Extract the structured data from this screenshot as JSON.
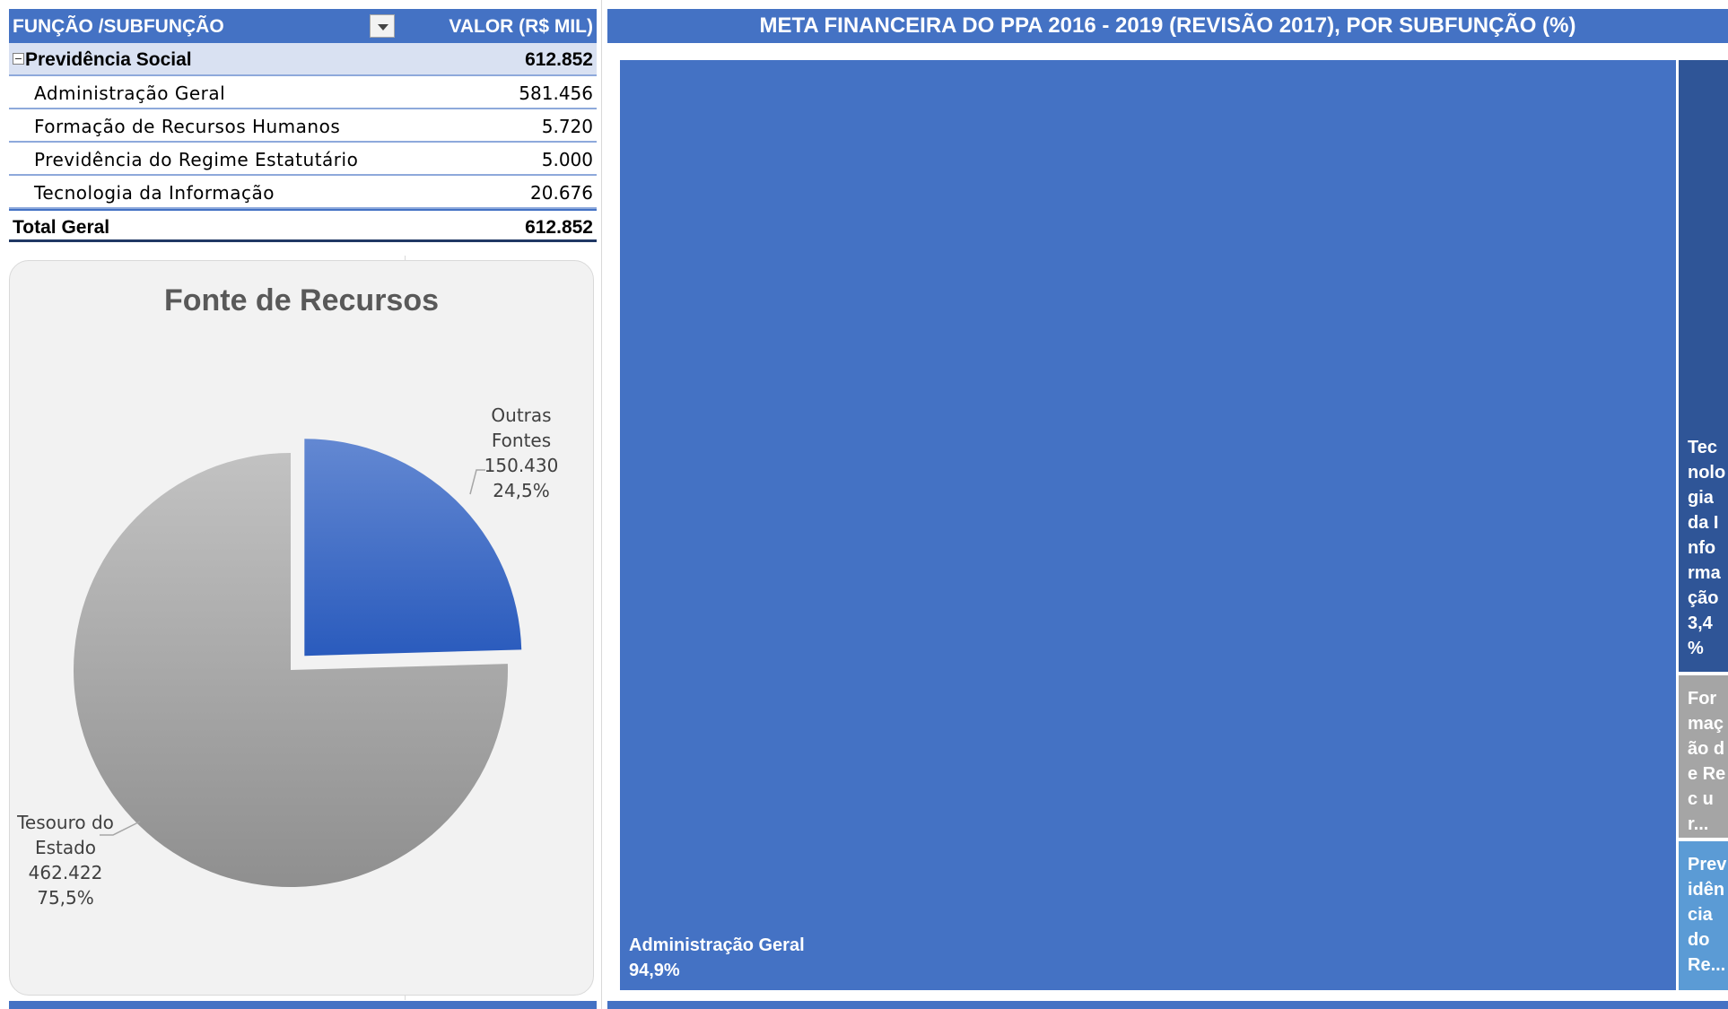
{
  "pivot": {
    "col1_header": "FUNÇÃO /SUBFUNÇÃO",
    "col2_header": "VALOR (R$ MIL)",
    "group": {
      "label": "Previdência Social",
      "value": "612.852"
    },
    "rows": [
      {
        "label": "Administração Geral",
        "value": "581.456"
      },
      {
        "label": "Formação de Recursos Humanos",
        "value": "5.720"
      },
      {
        "label": "Previdência do Regime Estatutário",
        "value": "5.000"
      },
      {
        "label": "Tecnologia da Informação",
        "value": "20.676"
      }
    ],
    "total": {
      "label": "Total Geral",
      "value": "612.852"
    }
  },
  "pie_chart": {
    "title": "Fonte de Recursos",
    "chart_data": {
      "type": "pie",
      "title": "Fonte de Recursos",
      "slices": [
        {
          "name": "Outras Fontes",
          "value": 150430,
          "value_label": "150.430",
          "percent": 24.5,
          "percent_label": "24,5%",
          "color": "#4472c4",
          "exploded": true
        },
        {
          "name": "Tesouro do Estado",
          "value": 462422,
          "value_label": "462.422",
          "percent": 75.5,
          "percent_label": "75,5%",
          "color": "#a5a5a5",
          "exploded": false
        }
      ]
    },
    "labels": {
      "outras": {
        "line1": "Outras",
        "line2": "Fontes",
        "value": "150.430",
        "pct": "24,5%"
      },
      "tesouro": {
        "line1": "Tesouro do",
        "line2": "Estado",
        "value": "462.422",
        "pct": "75,5%"
      }
    }
  },
  "treemap": {
    "title": "META FINANCEIRA DO PPA 2016 - 2019 (REVISÃO 2017), POR SUBFUNÇÃO (%)",
    "chart_data": {
      "type": "treemap",
      "title": "META FINANCEIRA DO PPA 2016 - 2019 (REVISÃO 2017), POR SUBFUNÇÃO (%)",
      "items": [
        {
          "name": "Administração Geral",
          "percent": 94.9,
          "label": "Administração Geral\n94,9%",
          "color": "#4472c4"
        },
        {
          "name": "Tecnologia da Informação",
          "percent": 3.4,
          "label": "Tec nolo gia da Info rma ção 3,4 %",
          "color": "#2f5597"
        },
        {
          "name": "Formação de Recursos Humanos",
          "percent": 0.9,
          "label": "For maç ão de Rec ur...",
          "color": "#a5a5a5"
        },
        {
          "name": "Previdência do Regime Estatutário",
          "percent": 0.8,
          "label": "Prev idên cia do Re...",
          "color": "#5b9bd5"
        }
      ]
    },
    "tiles": {
      "admin": {
        "name": "Administração Geral",
        "pct": "94,9%"
      },
      "tec": {
        "text": "Tec nolo gia da Info rma ção 3,4 %"
      },
      "form": {
        "text": "For maç ão de Rec ur..."
      },
      "prev": {
        "text": "Prev idên cia do Re..."
      }
    }
  }
}
